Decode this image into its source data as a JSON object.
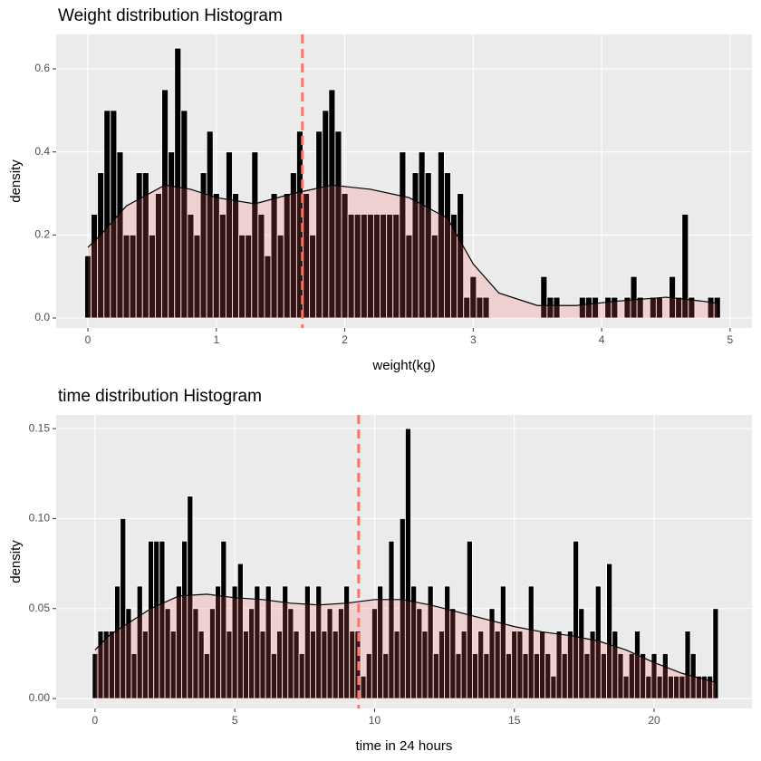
{
  "chart_data": [
    {
      "type": "histogram",
      "title": "Weight distribution Histogram",
      "xlabel": "weight(kg)",
      "ylabel": "density",
      "bins": [
        -0.025,
        0.025,
        0.075,
        0.125,
        0.175,
        0.225,
        0.275,
        0.325,
        0.375,
        0.425,
        0.475,
        0.525,
        0.575,
        0.625,
        0.675,
        0.725,
        0.775,
        0.825,
        0.875,
        0.925,
        0.975,
        1.025,
        1.075,
        1.125,
        1.175,
        1.225,
        1.275,
        1.325,
        1.375,
        1.425,
        1.475,
        1.525,
        1.575,
        1.625,
        1.675,
        1.725,
        1.775,
        1.825,
        1.875,
        1.925,
        1.975,
        2.025,
        2.075,
        2.125,
        2.175,
        2.225,
        2.275,
        2.325,
        2.375,
        2.425,
        2.475,
        2.525,
        2.575,
        2.625,
        2.675,
        2.725,
        2.775,
        2.825,
        2.875,
        2.925,
        2.975,
        3.025,
        3.075,
        3.125,
        3.175,
        3.225,
        3.275,
        3.325,
        3.375,
        3.425,
        3.475,
        3.525,
        3.575,
        3.625,
        3.675,
        3.725,
        3.775,
        3.825,
        3.875,
        3.925,
        3.975,
        4.025,
        4.075,
        4.125,
        4.175,
        4.225,
        4.275,
        4.325,
        4.375,
        4.425,
        4.475,
        4.525,
        4.575,
        4.625,
        4.675,
        4.725,
        4.775,
        4.825,
        4.875,
        4.925
      ],
      "values": [
        0.15,
        0.25,
        0.35,
        0.5,
        0.5,
        0.4,
        0.2,
        0.2,
        0.35,
        0.35,
        0.2,
        0.3,
        0.55,
        0.4,
        0.65,
        0.5,
        0.25,
        0.2,
        0.35,
        0.45,
        0.3,
        0.25,
        0.4,
        0.3,
        0.2,
        0.2,
        0.4,
        0.25,
        0.15,
        0.3,
        0.2,
        0.3,
        0.35,
        0.45,
        0.3,
        0.2,
        0.45,
        0.5,
        0.55,
        0.45,
        0.3,
        0.25,
        0.25,
        0.25,
        0.25,
        0.25,
        0.25,
        0.25,
        0.25,
        0.4,
        0.2,
        0.35,
        0.4,
        0.35,
        0.2,
        0.4,
        0.35,
        0.25,
        0.3,
        0.05,
        0.1,
        0.05,
        0.05,
        0,
        0,
        0,
        0,
        0,
        0,
        0,
        0,
        0.1,
        0.05,
        0.05,
        0,
        0,
        0,
        0.05,
        0.05,
        0.05,
        0,
        0.05,
        0.05,
        0,
        0.05,
        0.1,
        0.05,
        0,
        0.05,
        0.05,
        0,
        0.1,
        0.05,
        0.25,
        0.05,
        0,
        0,
        0.05,
        0.05
      ],
      "color": "#000000",
      "edge_color": "#ffffff",
      "density": {
        "x": [
          0,
          0.1,
          0.3,
          0.6,
          0.8,
          1.0,
          1.3,
          1.6,
          1.9,
          2.2,
          2.5,
          2.8,
          3.0,
          3.2,
          3.5,
          3.8,
          4.1,
          4.5,
          4.8,
          4.9
        ],
        "y": [
          0.17,
          0.2,
          0.27,
          0.32,
          0.31,
          0.29,
          0.275,
          0.3,
          0.32,
          0.31,
          0.29,
          0.24,
          0.13,
          0.06,
          0.03,
          0.03,
          0.04,
          0.05,
          0.04,
          0.035
        ],
        "color": "#000000",
        "fill": "#ff6666"
      },
      "vline": 1.67,
      "vline_color": "#f8766d",
      "xlim": [
        -0.247,
        5.17
      ],
      "ylim": [
        -0.024,
        0.683
      ],
      "xticks": [
        0,
        1,
        2,
        3,
        4,
        5
      ],
      "yticks": [
        {
          "value": 0,
          "label": "0.0"
        },
        0.2,
        0.4,
        0.6
      ],
      "grid": true
    },
    {
      "type": "histogram",
      "title": "time distribution Histogram",
      "xlabel": "time in 24 hours",
      "ylabel": "density",
      "bins": [
        -0.1,
        0.1,
        0.3,
        0.5,
        0.7,
        0.9,
        1.1,
        1.3,
        1.5,
        1.7,
        1.9,
        2.1,
        2.3,
        2.5,
        2.7,
        2.9,
        3.1,
        3.3,
        3.5,
        3.7,
        3.9,
        4.1,
        4.3,
        4.5,
        4.7,
        4.9,
        5.1,
        5.3,
        5.5,
        5.7,
        5.9,
        6.1,
        6.3,
        6.5,
        6.7,
        6.9,
        7.1,
        7.3,
        7.5,
        7.7,
        7.9,
        8.1,
        8.3,
        8.5,
        8.7,
        8.9,
        9.1,
        9.3,
        9.5,
        9.7,
        9.9,
        10.1,
        10.3,
        10.5,
        10.7,
        10.9,
        11.1,
        11.3,
        11.5,
        11.7,
        11.9,
        12.1,
        12.3,
        12.5,
        12.7,
        12.9,
        13.1,
        13.3,
        13.5,
        13.7,
        13.9,
        14.1,
        14.3,
        14.5,
        14.7,
        14.9,
        15.1,
        15.3,
        15.5,
        15.7,
        15.9,
        16.1,
        16.3,
        16.5,
        16.7,
        16.9,
        17.1,
        17.3,
        17.5,
        17.7,
        17.9,
        18.1,
        18.3,
        18.5,
        18.7,
        18.9,
        19.1,
        19.3,
        19.5,
        19.7,
        19.9,
        20.1,
        20.3,
        20.5,
        20.7,
        20.9,
        21.1,
        21.3,
        21.5,
        21.7,
        21.9,
        22.1,
        22.3
      ],
      "values": [
        0.025,
        0.0375,
        0.0375,
        0.0375,
        0.0625,
        0.1,
        0.05,
        0.025,
        0.0625,
        0.0375,
        0.0875,
        0.0875,
        0.0875,
        0.05,
        0.0375,
        0.0625,
        0.0875,
        0.1125,
        0.05,
        0.0375,
        0.025,
        0.05,
        0.0625,
        0.0875,
        0.0375,
        0.0625,
        0.075,
        0.0375,
        0.05,
        0.0625,
        0.0375,
        0.0625,
        0.025,
        0.0375,
        0.0625,
        0.05,
        0.0375,
        0.025,
        0.0625,
        0.0375,
        0.0625,
        0.0375,
        0.05,
        0.0375,
        0.05,
        0.0625,
        0.0375,
        0.0375,
        0.0125,
        0.025,
        0.05,
        0.0625,
        0.025,
        0.0875,
        0.0375,
        0.1,
        0.15,
        0.0625,
        0.05,
        0.0375,
        0.0625,
        0.025,
        0.0375,
        0.0625,
        0.05,
        0.025,
        0.0375,
        0.0875,
        0.025,
        0.0375,
        0.025,
        0.05,
        0.0375,
        0.0625,
        0.025,
        0.0375,
        0.0375,
        0.025,
        0.0625,
        0.025,
        0.0375,
        0.025,
        0.0125,
        0.0375,
        0.025,
        0.0375,
        0.0875,
        0.05,
        0.025,
        0.0375,
        0.0625,
        0.025,
        0.075,
        0.0375,
        0.025,
        0.0125,
        0.025,
        0.0375,
        0.025,
        0.0125,
        0.025,
        0.0125,
        0.025,
        0.0125,
        0.0125,
        0.0125,
        0.0375,
        0.025,
        0.0125,
        0.0125,
        0.0125,
        0.05
      ],
      "color": "#000000",
      "edge_color": "#ffffff",
      "density": {
        "x": [
          0,
          0.5,
          1,
          2,
          3,
          4,
          5,
          6,
          7,
          8,
          9,
          10,
          11,
          12,
          13,
          14,
          15,
          16,
          17,
          18,
          19,
          20,
          21,
          22.2
        ],
        "y": [
          0.027,
          0.035,
          0.04,
          0.05,
          0.057,
          0.058,
          0.056,
          0.055,
          0.053,
          0.052,
          0.053,
          0.055,
          0.055,
          0.052,
          0.048,
          0.044,
          0.04,
          0.037,
          0.035,
          0.032,
          0.027,
          0.02,
          0.014,
          0.009
        ],
        "color": "#000000",
        "fill": "#ff6666"
      },
      "vline": 9.43,
      "vline_color": "#f8766d",
      "xlim": [
        -1.39,
        23.5
      ],
      "ylim": [
        -0.0055,
        0.1576
      ],
      "xticks": [
        0,
        5,
        10,
        15,
        20
      ],
      "yticks": [
        {
          "value": 0,
          "label": "0.00"
        },
        {
          "value": 0.05,
          "label": "0.05"
        },
        {
          "value": 0.1,
          "label": "0.10"
        },
        {
          "value": 0.15,
          "label": "0.15"
        }
      ],
      "grid": true
    }
  ]
}
